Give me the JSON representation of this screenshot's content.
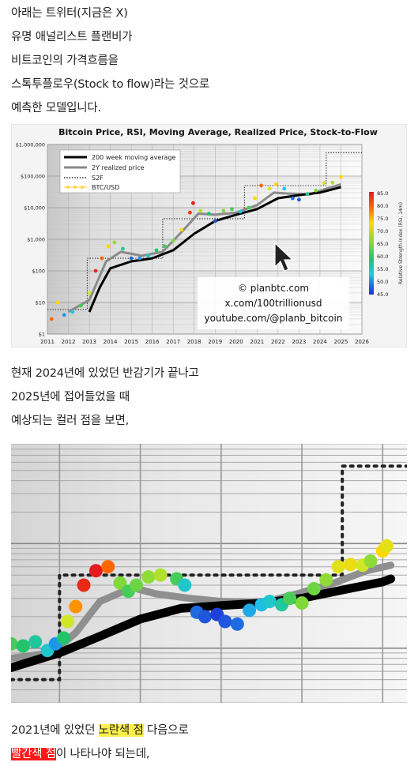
{
  "intro": {
    "lines": [
      "아래는 트위터(지금은 X)",
      "유명 애널리스트 플랜비가",
      "비트코인의 가격흐름을",
      "스톡투플로우(Stock to flow)라는 것으로",
      "예측한 모델입니다."
    ]
  },
  "chart1": {
    "chart_data": {
      "type": "scatter",
      "title": "Bitcoin Price, RSI, Moving Average, Realized Price, Stock-to-Flow",
      "yscale": "log",
      "ylim": [
        1,
        1000000
      ],
      "xlim": [
        2011,
        2026
      ],
      "y_ticks": [
        "$1,000,000",
        "$100,000",
        "$10,000",
        "$1,000",
        "$100",
        "$10",
        "$1"
      ],
      "x_ticks": [
        "2011",
        "2012",
        "2013",
        "2014",
        "2015",
        "2016",
        "2017",
        "2018",
        "2019",
        "2020",
        "2021",
        "2022",
        "2023",
        "2024",
        "2025",
        "2026"
      ],
      "legend": [
        "200 week moving average",
        "2Y realized price",
        "S2F",
        "BTC/USD"
      ],
      "colorbar": {
        "label": "Relative Strength Index (RSI, 14m)",
        "ticks": [
          "85.0",
          "80.0",
          "75.0",
          "70.0",
          "65.0",
          "60.0",
          "55.0",
          "50.0",
          "45.0"
        ]
      },
      "watermark": [
        "© planbtc.com",
        "x.com/100trillionusd",
        "youtube.com/@planb_bitcoin"
      ],
      "series": [
        {
          "name": "200 week moving average",
          "x": [
            2013.0,
            2013.5,
            2014.0,
            2015.0,
            2016.0,
            2017.0,
            2018.0,
            2019.0,
            2020.0,
            2021.0,
            2022.0,
            2023.0,
            2024.0,
            2025.0
          ],
          "y": [
            5,
            30,
            120,
            200,
            250,
            450,
            1500,
            3800,
            6000,
            9000,
            20000,
            25000,
            30000,
            45000
          ]
        },
        {
          "name": "2Y realized price",
          "x": [
            2012.0,
            2013.0,
            2013.8,
            2014.5,
            2015.5,
            2016.5,
            2017.5,
            2018.2,
            2019.0,
            2020.0,
            2021.0,
            2021.8,
            2022.5,
            2023.5,
            2024.3,
            2025.0
          ],
          "y": [
            5,
            12,
            200,
            400,
            300,
            400,
            2000,
            6500,
            6000,
            7000,
            12000,
            30000,
            28000,
            26000,
            40000,
            55000
          ]
        },
        {
          "name": "S2F",
          "x": [
            2011.0,
            2012.9,
            2012.9,
            2016.5,
            2016.5,
            2020.4,
            2020.4,
            2024.3,
            2024.3,
            2026.0
          ],
          "y": [
            6,
            6,
            250,
            250,
            4500,
            4500,
            50000,
            50000,
            550000,
            550000
          ]
        },
        {
          "name": "BTC/USD",
          "x": [
            2011.2,
            2011.5,
            2011.8,
            2012.2,
            2012.6,
            2013.0,
            2013.3,
            2013.6,
            2013.9,
            2014.2,
            2014.6,
            2015.0,
            2015.4,
            2015.8,
            2016.2,
            2016.6,
            2017.0,
            2017.4,
            2017.8,
            2017.95,
            2018.3,
            2018.7,
            2019.0,
            2019.4,
            2019.8,
            2020.2,
            2020.6,
            2020.9,
            2021.2,
            2021.6,
            2021.9,
            2022.3,
            2022.7,
            2023.0,
            2023.4,
            2023.8,
            2024.2,
            2024.6,
            2025.0
          ],
          "y": [
            3,
            10,
            4,
            5,
            8,
            20,
            100,
            250,
            600,
            800,
            500,
            250,
            250,
            300,
            450,
            600,
            900,
            2000,
            7000,
            14000,
            8000,
            6500,
            3800,
            8000,
            9000,
            7500,
            10000,
            20000,
            50000,
            40000,
            55000,
            40000,
            20000,
            18000,
            27000,
            35000,
            60000,
            62000,
            95000
          ],
          "rsi": [
            80,
            75,
            50,
            55,
            62,
            70,
            84,
            80,
            75,
            66,
            58,
            48,
            50,
            56,
            60,
            62,
            65,
            75,
            83,
            85,
            68,
            60,
            47,
            65,
            62,
            55,
            62,
            75,
            80,
            70,
            75,
            55,
            48,
            47,
            58,
            65,
            72,
            68,
            75
          ]
        }
      ]
    }
  },
  "middle": {
    "lines": [
      "현재 2024년에 있었던 반감기가 끝나고",
      "2025년에 접어들었을 때",
      "예상되는 컬러 점을 보면,"
    ]
  },
  "chart2": {
    "chart_data": {
      "type": "scatter",
      "yscale": "log",
      "xlim": [
        2020.4,
        2025.3
      ],
      "ylim": [
        3000,
        900000
      ],
      "series": [
        {
          "name": "200 week moving average",
          "x": [
            2020.4,
            2021.0,
            2021.5,
            2022.0,
            2022.5,
            2023.0,
            2023.5,
            2024.0,
            2024.5,
            2025.0,
            2025.1
          ],
          "y": [
            6500,
            9000,
            13000,
            19000,
            24000,
            25500,
            27000,
            30000,
            36000,
            43000,
            46000
          ]
        },
        {
          "name": "2Y realized price",
          "x": [
            2020.4,
            2020.9,
            2021.2,
            2021.5,
            2021.9,
            2022.2,
            2022.6,
            2023.0,
            2023.5,
            2024.0,
            2024.4,
            2024.8,
            2025.1
          ],
          "y": [
            8000,
            9000,
            14000,
            28000,
            38000,
            33000,
            30000,
            28000,
            27000,
            34000,
            42000,
            55000,
            62000
          ]
        },
        {
          "name": "S2F",
          "x": [
            2020.4,
            2021.0,
            2021.0,
            2024.5,
            2024.5,
            2025.3
          ],
          "y": [
            5000,
            5000,
            50000,
            50000,
            550000,
            550000
          ]
        },
        {
          "name": "BTC/USD",
          "x": [
            2020.4,
            2020.55,
            2020.7,
            2020.85,
            2020.95,
            2021.05,
            2021.1,
            2021.2,
            2021.3,
            2021.45,
            2021.6,
            2021.75,
            2021.85,
            2021.95,
            2022.1,
            2022.25,
            2022.45,
            2022.55,
            2022.7,
            2022.8,
            2022.95,
            2023.05,
            2023.2,
            2023.35,
            2023.5,
            2023.6,
            2023.75,
            2023.85,
            2024.0,
            2024.15,
            2024.3,
            2024.45,
            2024.6,
            2024.75,
            2024.85,
            2025.0,
            2025.05
          ],
          "y": [
            11000,
            10500,
            11500,
            9500,
            11000,
            12500,
            18000,
            25000,
            40000,
            55000,
            60000,
            42000,
            35000,
            40000,
            48000,
            50000,
            46000,
            40000,
            22000,
            20000,
            21000,
            18000,
            17000,
            23000,
            26000,
            28000,
            26000,
            30000,
            27000,
            37000,
            45000,
            60000,
            63000,
            62000,
            68000,
            85000,
            95000
          ],
          "rsi": [
            62,
            60,
            58,
            56,
            50,
            60,
            70,
            78,
            84,
            85,
            80,
            65,
            62,
            64,
            66,
            68,
            62,
            56,
            48,
            47,
            46,
            47,
            48,
            52,
            54,
            56,
            58,
            62,
            65,
            64,
            66,
            72,
            73,
            70,
            66,
            75,
            72
          ]
        }
      ]
    }
  },
  "closing": {
    "line1_a": "2021년에 있었던 ",
    "line1_hl": "노란색 점",
    "line1_b": " 다음으로",
    "line2_hl": "빨간색 점",
    "line2_b": "이 나타나야 되는데,"
  }
}
